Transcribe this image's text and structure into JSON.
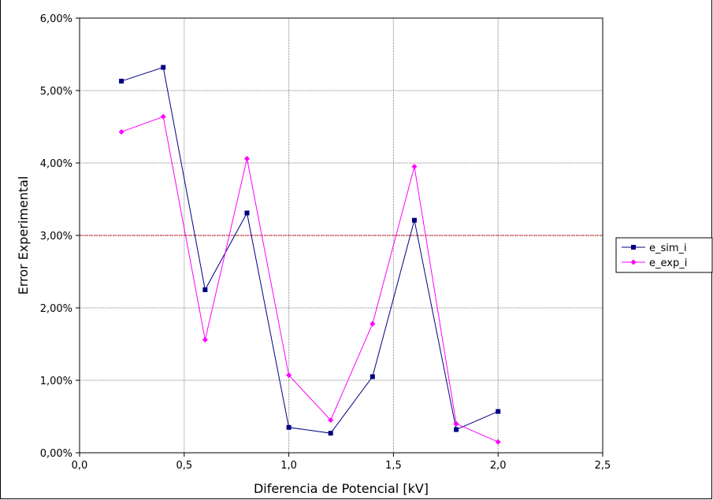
{
  "chart_data": {
    "type": "line",
    "title": "",
    "xlabel": "Diferencia de Potencial [kV]",
    "ylabel": "Error Experimental",
    "xlim": [
      0,
      2.5
    ],
    "ylim": [
      0,
      6
    ],
    "x_ticks": [
      "0,0",
      "0,5",
      "1,0",
      "1,5",
      "2,0",
      "2,5"
    ],
    "y_ticks": [
      "0,00%",
      "1,00%",
      "2,00%",
      "3,00%",
      "4,00%",
      "5,00%",
      "6,00%"
    ],
    "grid": true,
    "legend_position": "right",
    "reference_line": {
      "y": 3.0,
      "color": "#cc0000"
    },
    "series": [
      {
        "name": "e_sim_i",
        "color": "#000080",
        "marker": "square",
        "x": [
          0.2,
          0.4,
          0.6,
          0.8,
          1.0,
          1.2,
          1.4,
          1.6,
          1.8,
          2.0
        ],
        "values": [
          5.13,
          5.32,
          2.25,
          3.31,
          0.35,
          0.27,
          1.05,
          3.21,
          0.32,
          0.57
        ]
      },
      {
        "name": "e_exp_i",
        "color": "#ff00ff",
        "marker": "diamond",
        "x": [
          0.2,
          0.4,
          0.6,
          0.8,
          1.0,
          1.2,
          1.4,
          1.6,
          1.8,
          2.0
        ],
        "values": [
          4.43,
          4.64,
          1.56,
          4.06,
          1.07,
          0.45,
          1.78,
          3.95,
          0.4,
          0.15
        ]
      }
    ]
  }
}
